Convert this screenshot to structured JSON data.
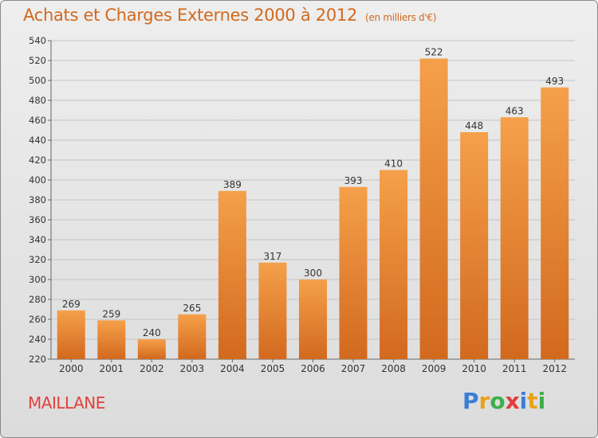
{
  "header": {
    "title": "Achats et Charges Externes 2000 à 2012",
    "unit": "(en milliers d'€)"
  },
  "footer": {
    "place": "MAILLANE",
    "logo_letters": [
      "P",
      "r",
      "o",
      "x",
      "i",
      "t",
      "i"
    ],
    "logo_colors": [
      "#3a7fd6",
      "#e8a21a",
      "#3fae49",
      "#e23b3b",
      "#3a7fd6",
      "#e8a21a",
      "#3fae49"
    ]
  },
  "colors": {
    "bar_top": "#f5a04a",
    "bar_bottom": "#d2691e",
    "title": "#d2691e",
    "place": "#e0413b"
  },
  "chart_data": {
    "type": "bar",
    "categories": [
      "2000",
      "2001",
      "2002",
      "2003",
      "2004",
      "2005",
      "2006",
      "2007",
      "2008",
      "2009",
      "2010",
      "2011",
      "2012"
    ],
    "values": [
      269,
      259,
      240,
      265,
      389,
      317,
      300,
      393,
      410,
      522,
      448,
      463,
      493
    ],
    "ylim": [
      220,
      540
    ],
    "yticks": [
      220,
      240,
      260,
      280,
      300,
      320,
      340,
      360,
      380,
      400,
      420,
      440,
      460,
      480,
      500,
      520,
      540
    ],
    "grid": true
  }
}
